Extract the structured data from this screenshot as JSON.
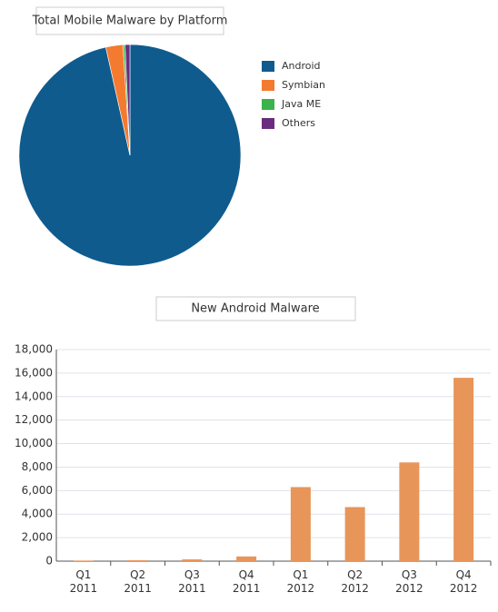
{
  "chart_data": [
    {
      "type": "pie",
      "title": "Total Mobile Malware by Platform",
      "categories": [
        "Android",
        "Symbian",
        "Java ME",
        "Others"
      ],
      "values": [
        96.5,
        2.5,
        0.3,
        0.7
      ],
      "colors": [
        "#0f5b8e",
        "#f47a30",
        "#3bb34a",
        "#6a2c7e"
      ],
      "legend": "right"
    },
    {
      "type": "bar",
      "title": "New Android Malware",
      "categories": [
        "Q1 2011",
        "Q2 2011",
        "Q3 2011",
        "Q4 2011",
        "Q1 2012",
        "Q2 2012",
        "Q3 2012",
        "Q4 2012"
      ],
      "values": [
        50,
        80,
        150,
        400,
        6300,
        4600,
        8400,
        15600
      ],
      "color": "#e8955a",
      "ylim": [
        0,
        18000
      ],
      "yticks": [
        0,
        {
          "value": 2000,
          "label": "2,000"
        },
        {
          "value": 4000,
          "label": "4,000"
        },
        {
          "value": 6000,
          "label": "6,000"
        },
        {
          "value": 8000,
          "label": "8,000"
        },
        {
          "value": 10000,
          "label": "10,000"
        },
        {
          "value": 12000,
          "label": "12,000"
        },
        {
          "value": 14000,
          "label": "14,000"
        },
        {
          "value": 16000,
          "label": "16,000"
        },
        {
          "value": 18000,
          "label": "18,000"
        }
      ],
      "grid": true
    }
  ]
}
